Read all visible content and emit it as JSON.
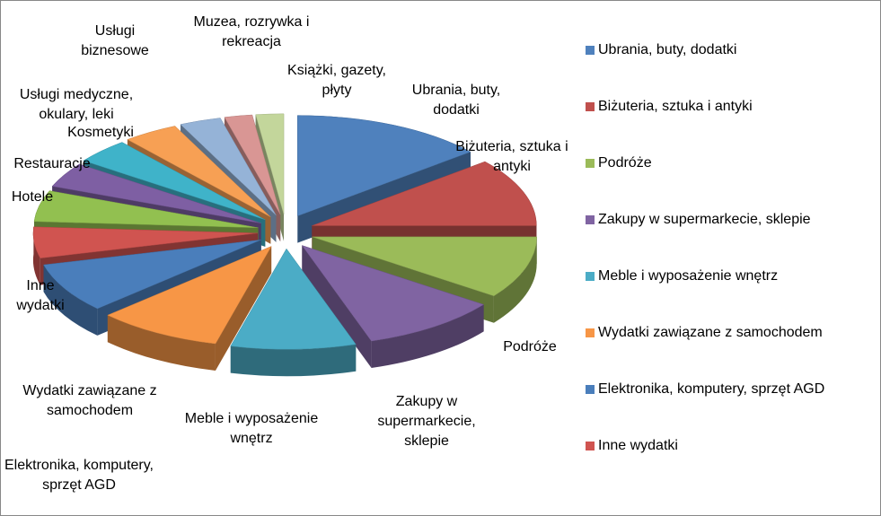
{
  "chart_data": {
    "type": "pie",
    "three_d": true,
    "exploded": true,
    "categories": [
      "Ubrania, buty, dodatki",
      "Biżuteria, sztuka i antyki",
      "Podróże",
      "Zakupy w supermarkecie, sklepie",
      "Meble i wyposażenie wnętrz",
      "Wydatki zawiązane z samochodem",
      "Elektronika, komputery, sprzęt AGD",
      "Inne wydatki",
      "Hotele",
      "Restauracje",
      "Kosmetyki",
      "Usługi medyczne, okulary, leki",
      "Usługi biznesowe",
      "Muzea, rozrywka i rekreacja",
      "Książki, gazety, płyty"
    ],
    "values": [
      14,
      11,
      10,
      10,
      9,
      9,
      8,
      5,
      5,
      4,
      4,
      4,
      3,
      2,
      2
    ],
    "colors": [
      "#4f81bd",
      "#c0504d",
      "#9bbb59",
      "#8064a2",
      "#4bacc6",
      "#f79646",
      "#4a7ebb",
      "#d05450",
      "#92c050",
      "#7e5fa3",
      "#3fb3c9",
      "#f7a054",
      "#95b3d7",
      "#d99694",
      "#c3d69b"
    ],
    "legend_position": "right"
  }
}
